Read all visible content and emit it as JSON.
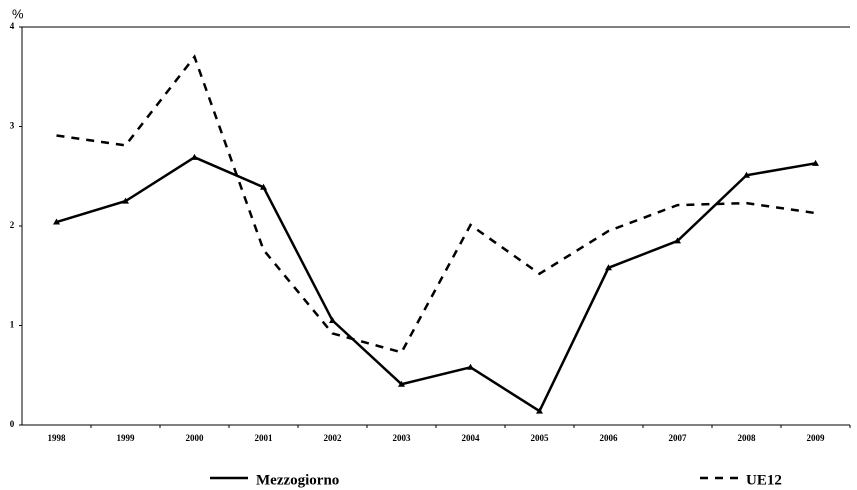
{
  "chart_data": {
    "type": "line",
    "y_label": "%",
    "categories": [
      "1998",
      "1999",
      "2000",
      "2001",
      "2002",
      "2003",
      "2004",
      "2005",
      "2006",
      "2007",
      "2008",
      "2009"
    ],
    "series": [
      {
        "name": "Mezzogiorno",
        "color": "#000000",
        "dash": "solid",
        "marker": "triangle",
        "values": [
          2.04,
          2.25,
          2.69,
          2.39,
          1.05,
          0.41,
          0.58,
          0.14,
          1.58,
          1.85,
          2.51,
          2.63
        ]
      },
      {
        "name": "UE12",
        "color": "#000000",
        "dash": "dashed",
        "values": [
          2.91,
          2.81,
          3.7,
          1.76,
          0.92,
          0.73,
          2.01,
          1.52,
          1.95,
          2.21,
          2.23,
          2.13
        ]
      }
    ],
    "ylim": [
      0,
      4
    ],
    "yticks": [
      0,
      1,
      2,
      3,
      4
    ],
    "grid": false,
    "legend": "bottom"
  }
}
